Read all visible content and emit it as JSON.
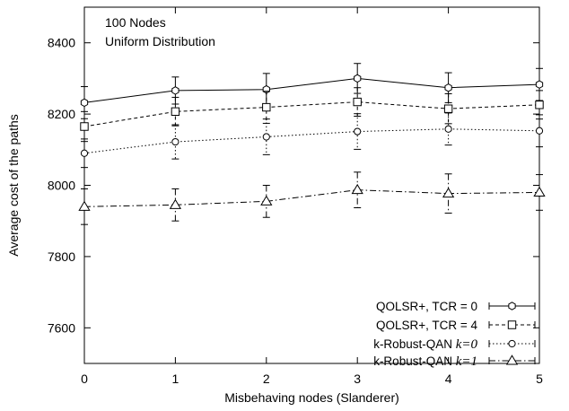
{
  "chart_data": {
    "type": "line",
    "annotation": [
      "100 Nodes",
      "Uniform Distribution"
    ],
    "xlabel": "Misbehaving nodes (Slanderer)",
    "ylabel": "Average cost of the paths",
    "xlim": [
      0,
      5
    ],
    "ylim": [
      7500,
      8500
    ],
    "x": [
      0,
      1,
      2,
      3,
      4,
      5
    ],
    "xticks": [
      "0",
      "1",
      "2",
      "3",
      "4",
      "5"
    ],
    "yticks": [
      7600,
      7800,
      8000,
      8200,
      8400
    ],
    "grid": false,
    "legend_position": "bottom-right",
    "series": [
      {
        "name": "QOLSR+, TCR = 0",
        "legend_prefix": "QOLSR+, TCR = 0",
        "legend_italic": "",
        "marker": "hexagon",
        "dash": "",
        "values": [
          8232,
          8266,
          8269,
          8300,
          8274,
          8283
        ],
        "err": [
          45,
          38,
          45,
          42,
          42,
          45
        ]
      },
      {
        "name": "QOLSR+, TCR = 4",
        "legend_prefix": "QOLSR+, TCR = 4",
        "legend_italic": "",
        "marker": "square",
        "dash": "4,3",
        "values": [
          8165,
          8207,
          8219,
          8234,
          8215,
          8226
        ],
        "err": [
          42,
          40,
          45,
          40,
          42,
          40
        ]
      },
      {
        "name": "k-Robust-QAN k=0",
        "legend_prefix": "k-Robust-QAN ",
        "legend_italic": "k=0",
        "marker": "circle",
        "dash": "1.5,2.5",
        "values": [
          8090,
          8122,
          8136,
          8151,
          8158,
          8153
        ],
        "err": [
          40,
          48,
          50,
          50,
          45,
          45
        ]
      },
      {
        "name": "k-Robust-QAN k=1",
        "legend_prefix": "k-Robust-QAN ",
        "legend_italic": "k=1",
        "marker": "triangle",
        "dash": "7,3,1.5,3",
        "values": [
          7940,
          7945,
          7955,
          7987,
          7977,
          7980
        ],
        "err": [
          50,
          45,
          45,
          50,
          55,
          50
        ]
      }
    ]
  }
}
